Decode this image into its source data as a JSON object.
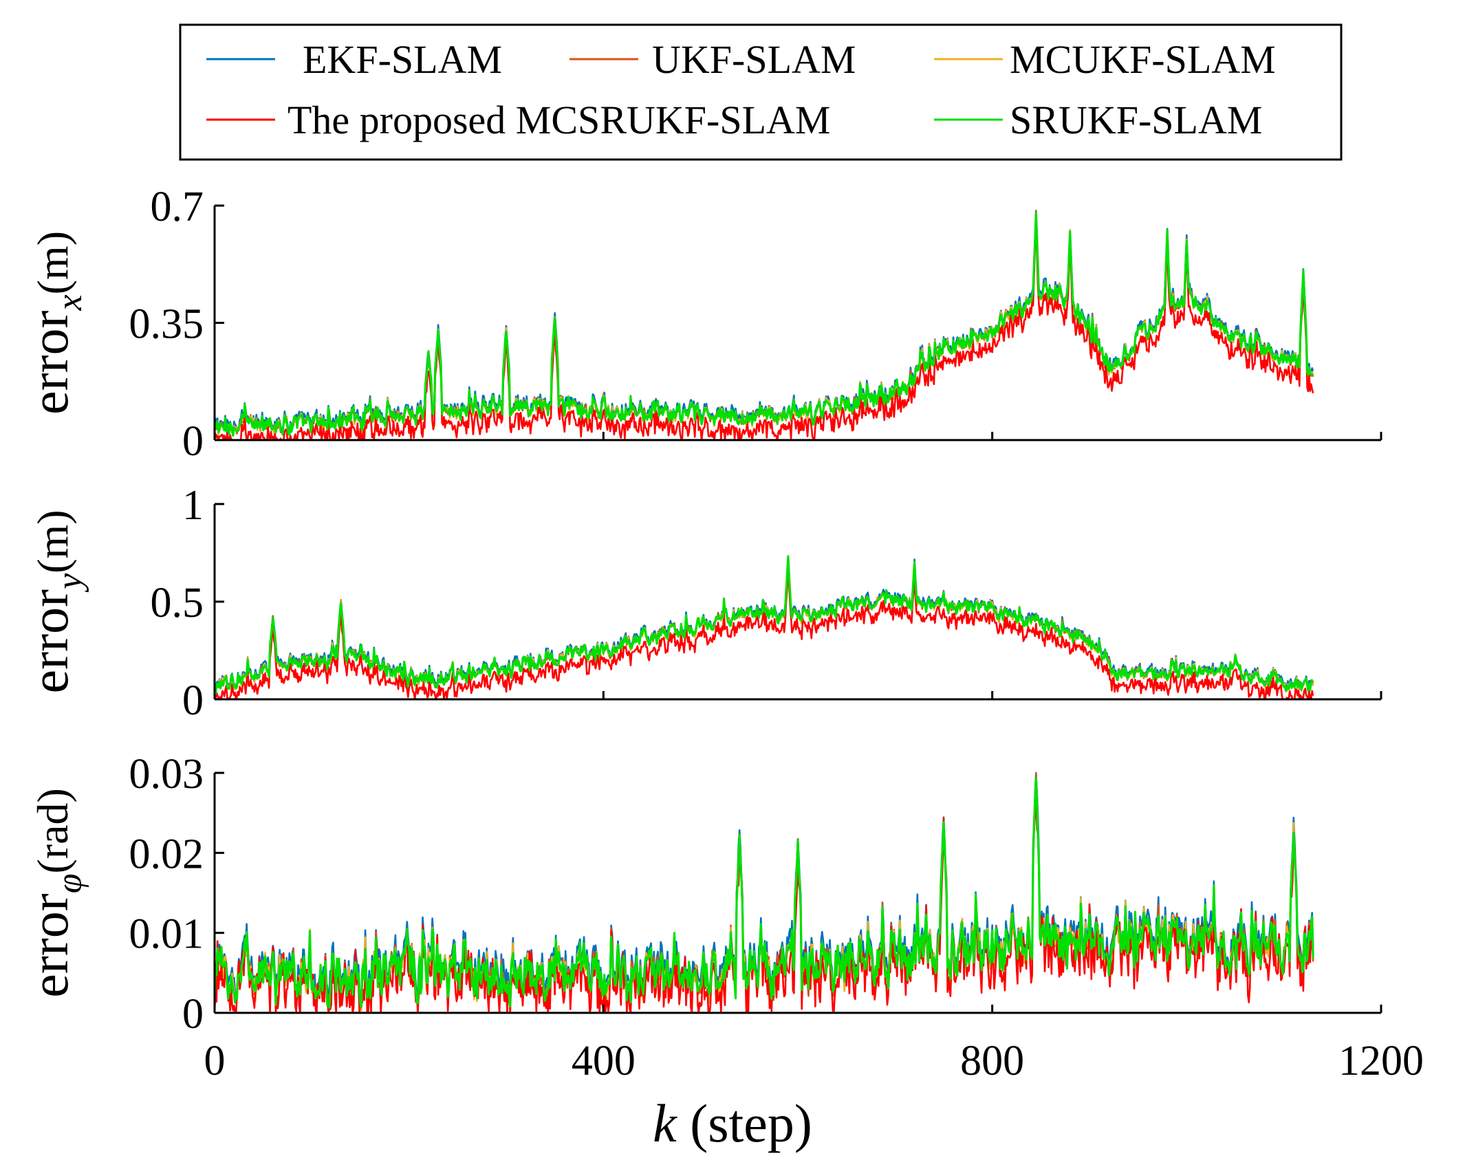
{
  "chart_data": {
    "type": "line",
    "xlabel": "k (step)",
    "xlabel_italic": "k",
    "xlabel_rest": " (step)",
    "xlim": [
      0,
      1200
    ],
    "xticks": [
      0,
      400,
      800,
      1200
    ],
    "xtick_labels": [
      "0",
      "400",
      "800",
      "1200"
    ],
    "n_steps": 1130,
    "legend": {
      "placement": "top",
      "entries": [
        {
          "name": "EKF-SLAM",
          "color": "#0072BD"
        },
        {
          "name": "UKF-SLAM",
          "color": "#D95319"
        },
        {
          "name": "MCUKF-SLAM",
          "color": "#EDB120"
        },
        {
          "name": "The proposed MCSRUKF-SLAM",
          "color": "#FF0000"
        },
        {
          "name": "SRUKF-SLAM",
          "color": "#00E000"
        }
      ]
    },
    "panels": [
      {
        "ylabel_base": "error",
        "ylabel_sub": "x",
        "ylabel_unit": "(m)",
        "ylim": [
          0,
          0.7
        ],
        "yticks": [
          0,
          0.35,
          0.7
        ],
        "ytick_labels": [
          "0",
          "0.35",
          "0.7"
        ],
        "trend_steps": [
          0,
          100,
          200,
          300,
          400,
          500,
          600,
          700,
          750,
          800,
          850,
          880,
          920,
          950,
          980,
          1000,
          1050,
          1100,
          1130
        ],
        "trend_values": [
          0.04,
          0.05,
          0.08,
          0.1,
          0.09,
          0.07,
          0.07,
          0.14,
          0.28,
          0.33,
          0.44,
          0.42,
          0.22,
          0.3,
          0.4,
          0.43,
          0.3,
          0.25,
          0.2
        ],
        "noise_amplitude": 0.06,
        "peaks": [
          [
            220,
            0.26
          ],
          [
            230,
            0.33
          ],
          [
            300,
            0.33
          ],
          [
            350,
            0.37
          ],
          [
            845,
            0.68
          ],
          [
            880,
            0.62
          ],
          [
            980,
            0.62
          ],
          [
            1000,
            0.6
          ],
          [
            1120,
            0.5
          ]
        ],
        "proposed_offset": -0.04
      },
      {
        "ylabel_base": "error",
        "ylabel_sub": "y",
        "ylabel_unit": "(m)",
        "ylim": [
          0,
          1
        ],
        "yticks": [
          0,
          0.5,
          1
        ],
        "ytick_labels": [
          "0",
          "0.5",
          "1"
        ],
        "trend_steps": [
          0,
          50,
          100,
          150,
          200,
          250,
          300,
          350,
          400,
          450,
          500,
          550,
          600,
          650,
          700,
          750,
          800,
          850,
          900,
          920,
          950,
          1000,
          1050,
          1100,
          1130
        ],
        "trend_values": [
          0.05,
          0.15,
          0.2,
          0.22,
          0.1,
          0.12,
          0.15,
          0.22,
          0.25,
          0.32,
          0.38,
          0.45,
          0.42,
          0.48,
          0.5,
          0.48,
          0.45,
          0.38,
          0.3,
          0.15,
          0.12,
          0.14,
          0.14,
          0.08,
          0.05
        ],
        "noise_amplitude": 0.08,
        "peaks": [
          [
            60,
            0.42
          ],
          [
            130,
            0.5
          ],
          [
            590,
            0.72
          ],
          [
            720,
            0.7
          ]
        ],
        "proposed_offset": -0.06
      },
      {
        "ylabel_base": "error",
        "ylabel_sub": "φ",
        "ylabel_unit": "(rad)",
        "ylim": [
          0,
          0.03
        ],
        "yticks": [
          0,
          0.01,
          0.02,
          0.03
        ],
        "ytick_labels": [
          "0",
          "0.01",
          "0.02",
          "0.03"
        ],
        "trend_steps": [
          0,
          200,
          400,
          600,
          700,
          800,
          900,
          1000,
          1130
        ],
        "trend_values": [
          0.004,
          0.0045,
          0.005,
          0.005,
          0.0065,
          0.0085,
          0.009,
          0.0085,
          0.008
        ],
        "noise_amplitude": 0.0065,
        "peaks": [
          [
            540,
            0.022
          ],
          [
            600,
            0.021
          ],
          [
            750,
            0.024
          ],
          [
            845,
            0.03
          ],
          [
            1110,
            0.023
          ]
        ],
        "proposed_offset": -0.0012
      }
    ]
  }
}
